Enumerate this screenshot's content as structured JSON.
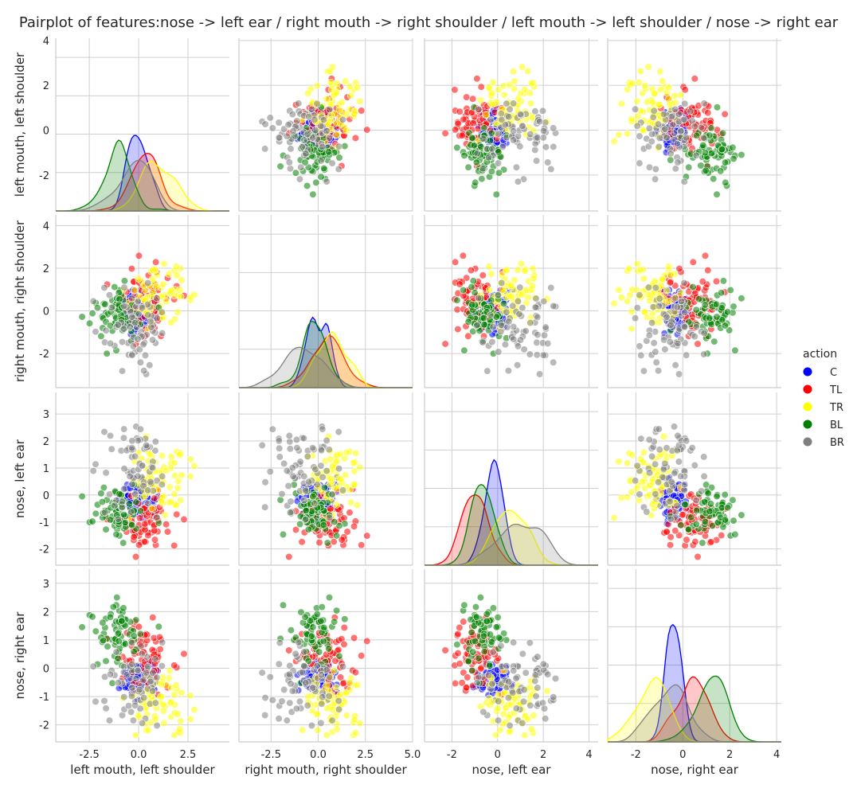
{
  "chart_data": {
    "type": "scatter",
    "title": "Pairplot of features:nose -> left ear / right mouth -> right shoulder / left mouth -> left shoulder / nose -> right ear",
    "variables": [
      {
        "label": "left mouth, left shoulder",
        "lim": [
          -4.2,
          4.6
        ],
        "ylim": [
          -3.6,
          4.1
        ],
        "ticks": [
          "-2.5",
          "0.0",
          "2.5"
        ],
        "tick_values": [
          -2.5,
          0,
          2.5
        ],
        "yticks": [
          "4",
          "2",
          "0",
          "-2"
        ],
        "ytick_values": [
          4,
          2,
          0,
          -2
        ]
      },
      {
        "label": "right mouth, right shoulder",
        "lim": [
          -4.2,
          5.0
        ],
        "ylim": [
          -3.6,
          4.5
        ],
        "ticks": [
          "-2.5",
          "0.0",
          "2.5",
          "5.0"
        ],
        "tick_values": [
          -2.5,
          0,
          2.5,
          5.0
        ],
        "yticks": [
          "4",
          "2",
          "0",
          "-2"
        ],
        "ytick_values": [
          4,
          2,
          0,
          -2
        ]
      },
      {
        "label": "nose, left ear",
        "lim": [
          -3.2,
          4.4
        ],
        "ylim": [
          -2.6,
          3.8
        ],
        "ticks": [
          "-2",
          "0",
          "2",
          "4"
        ],
        "tick_values": [
          -2,
          0,
          2,
          4
        ],
        "yticks": [
          "3",
          "2",
          "1",
          "0",
          "-1",
          "-2"
        ],
        "ytick_values": [
          3,
          2,
          1,
          0,
          -1,
          -2
        ]
      },
      {
        "label": "nose, right ear",
        "lim": [
          -3.2,
          4.2
        ],
        "ylim": [
          -2.6,
          3.5
        ],
        "ticks": [
          "-2",
          "0",
          "2",
          "4"
        ],
        "tick_values": [
          -2,
          0,
          2,
          4
        ],
        "yticks": [
          "3",
          "2",
          "1",
          "0",
          "-1",
          "-2"
        ],
        "ytick_values": [
          3,
          2,
          1,
          0,
          -1,
          -2
        ]
      }
    ],
    "hue": "action",
    "series": [
      {
        "name": "C",
        "color": "#0000ff",
        "means": [
          0.0,
          0.0,
          -0.2,
          -0.4
        ],
        "spread": [
          0.6,
          0.5,
          0.5,
          0.4
        ]
      },
      {
        "name": "TL",
        "color": "#ff0000",
        "means": [
          0.3,
          0.4,
          -0.9,
          0.5
        ],
        "spread": [
          0.9,
          0.8,
          0.6,
          0.7
        ]
      },
      {
        "name": "TR",
        "color": "#ffff00",
        "means": [
          1.1,
          0.7,
          0.6,
          -1.3
        ],
        "spread": [
          0.9,
          0.8,
          0.8,
          0.8
        ]
      },
      {
        "name": "BL",
        "color": "#008000",
        "means": [
          -1.0,
          -0.4,
          -0.7,
          1.3
        ],
        "spread": [
          0.8,
          0.7,
          0.6,
          0.8
        ]
      },
      {
        "name": "BR",
        "color": "#808080",
        "means": [
          -0.2,
          -0.9,
          0.9,
          -0.6
        ],
        "spread": [
          1.0,
          1.0,
          1.0,
          0.8
        ]
      }
    ],
    "grid": true,
    "legend_position": "right"
  }
}
